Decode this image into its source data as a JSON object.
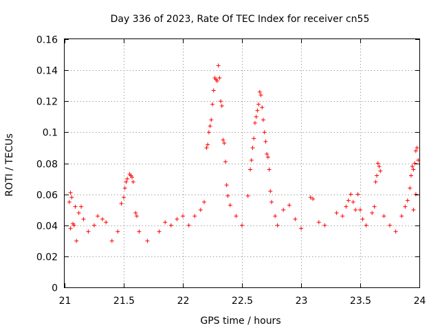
{
  "chart_data": {
    "type": "scatter",
    "title": "Day 336 of 2023, Rate Of TEC Index for receiver cn55",
    "xlabel": "GPS time / hours",
    "ylabel": "ROTI / TECUs",
    "xlim": [
      21,
      24
    ],
    "ylim": [
      0,
      0.16
    ],
    "xticks": [
      21,
      21.5,
      22,
      22.5,
      23,
      23.5,
      24
    ],
    "xtick_labels": [
      "21",
      "21.5",
      "22",
      "22.5",
      "23",
      "23.5",
      "24"
    ],
    "yticks": [
      0,
      0.02,
      0.04,
      0.06,
      0.08,
      0.1,
      0.12,
      0.14,
      0.16
    ],
    "ytick_labels": [
      "0",
      "0.02",
      "0.04",
      "0.06",
      "0.08",
      "0.1",
      "0.12",
      "0.14",
      "0.16"
    ],
    "grid": true,
    "marker": "+",
    "color": "#ff0000",
    "series": [
      {
        "name": "ROTI",
        "points": [
          [
            21.05,
            0.061
          ],
          [
            21.06,
            0.058
          ],
          [
            21.04,
            0.055
          ],
          [
            21.07,
            0.041
          ],
          [
            21.05,
            0.038
          ],
          [
            21.08,
            0.04
          ],
          [
            21.09,
            0.052
          ],
          [
            21.12,
            0.048
          ],
          [
            21.14,
            0.052
          ],
          [
            21.16,
            0.044
          ],
          [
            21.1,
            0.03
          ],
          [
            21.2,
            0.036
          ],
          [
            21.25,
            0.04
          ],
          [
            21.28,
            0.046
          ],
          [
            21.32,
            0.044
          ],
          [
            21.35,
            0.042
          ],
          [
            21.4,
            0.03
          ],
          [
            21.45,
            0.036
          ],
          [
            21.48,
            0.054
          ],
          [
            21.5,
            0.058
          ],
          [
            21.51,
            0.064
          ],
          [
            21.52,
            0.068
          ],
          [
            21.53,
            0.07
          ],
          [
            21.55,
            0.073
          ],
          [
            21.56,
            0.072
          ],
          [
            21.57,
            0.071
          ],
          [
            21.58,
            0.068
          ],
          [
            21.6,
            0.048
          ],
          [
            21.61,
            0.046
          ],
          [
            21.63,
            0.036
          ],
          [
            21.7,
            0.03
          ],
          [
            21.8,
            0.036
          ],
          [
            21.85,
            0.042
          ],
          [
            21.9,
            0.04
          ],
          [
            21.95,
            0.044
          ],
          [
            22.0,
            0.046
          ],
          [
            22.05,
            0.04
          ],
          [
            22.1,
            0.046
          ],
          [
            22.15,
            0.05
          ],
          [
            22.18,
            0.055
          ],
          [
            22.2,
            0.09
          ],
          [
            22.21,
            0.092
          ],
          [
            22.22,
            0.1
          ],
          [
            22.23,
            0.104
          ],
          [
            22.24,
            0.108
          ],
          [
            22.25,
            0.118
          ],
          [
            22.26,
            0.127
          ],
          [
            22.27,
            0.135
          ],
          [
            22.28,
            0.134
          ],
          [
            22.29,
            0.133
          ],
          [
            22.3,
            0.143
          ],
          [
            22.31,
            0.135
          ],
          [
            22.32,
            0.12
          ],
          [
            22.33,
            0.117
          ],
          [
            22.34,
            0.095
          ],
          [
            22.35,
            0.093
          ],
          [
            22.36,
            0.081
          ],
          [
            22.37,
            0.066
          ],
          [
            22.38,
            0.059
          ],
          [
            22.4,
            0.053
          ],
          [
            22.45,
            0.046
          ],
          [
            22.5,
            0.04
          ],
          [
            22.55,
            0.059
          ],
          [
            22.57,
            0.076
          ],
          [
            22.58,
            0.082
          ],
          [
            22.59,
            0.09
          ],
          [
            22.6,
            0.096
          ],
          [
            22.61,
            0.106
          ],
          [
            22.62,
            0.11
          ],
          [
            22.63,
            0.114
          ],
          [
            22.64,
            0.118
          ],
          [
            22.65,
            0.126
          ],
          [
            22.66,
            0.124
          ],
          [
            22.67,
            0.116
          ],
          [
            22.68,
            0.108
          ],
          [
            22.69,
            0.1
          ],
          [
            22.7,
            0.094
          ],
          [
            22.71,
            0.086
          ],
          [
            22.72,
            0.084
          ],
          [
            22.73,
            0.076
          ],
          [
            22.74,
            0.062
          ],
          [
            22.75,
            0.055
          ],
          [
            22.78,
            0.046
          ],
          [
            22.8,
            0.04
          ],
          [
            22.85,
            0.05
          ],
          [
            22.9,
            0.053
          ],
          [
            22.95,
            0.044
          ],
          [
            23.0,
            0.038
          ],
          [
            23.08,
            0.058
          ],
          [
            23.1,
            0.057
          ],
          [
            23.15,
            0.042
          ],
          [
            23.2,
            0.04
          ],
          [
            23.3,
            0.048
          ],
          [
            23.35,
            0.046
          ],
          [
            23.38,
            0.052
          ],
          [
            23.4,
            0.056
          ],
          [
            23.42,
            0.06
          ],
          [
            23.44,
            0.055
          ],
          [
            23.46,
            0.05
          ],
          [
            23.48,
            0.06
          ],
          [
            23.5,
            0.05
          ],
          [
            23.52,
            0.044
          ],
          [
            23.55,
            0.04
          ],
          [
            23.6,
            0.048
          ],
          [
            23.62,
            0.052
          ],
          [
            23.63,
            0.068
          ],
          [
            23.64,
            0.072
          ],
          [
            23.65,
            0.08
          ],
          [
            23.66,
            0.078
          ],
          [
            23.67,
            0.075
          ],
          [
            23.7,
            0.046
          ],
          [
            23.75,
            0.04
          ],
          [
            23.8,
            0.036
          ],
          [
            23.85,
            0.046
          ],
          [
            23.88,
            0.052
          ],
          [
            23.9,
            0.056
          ],
          [
            23.92,
            0.064
          ],
          [
            23.93,
            0.072
          ],
          [
            23.94,
            0.078
          ],
          [
            23.95,
            0.076
          ],
          [
            23.96,
            0.08
          ],
          [
            23.97,
            0.088
          ],
          [
            23.98,
            0.09
          ],
          [
            23.99,
            0.082
          ],
          [
            23.97,
            0.06
          ],
          [
            23.95,
            0.05
          ]
        ]
      }
    ]
  }
}
